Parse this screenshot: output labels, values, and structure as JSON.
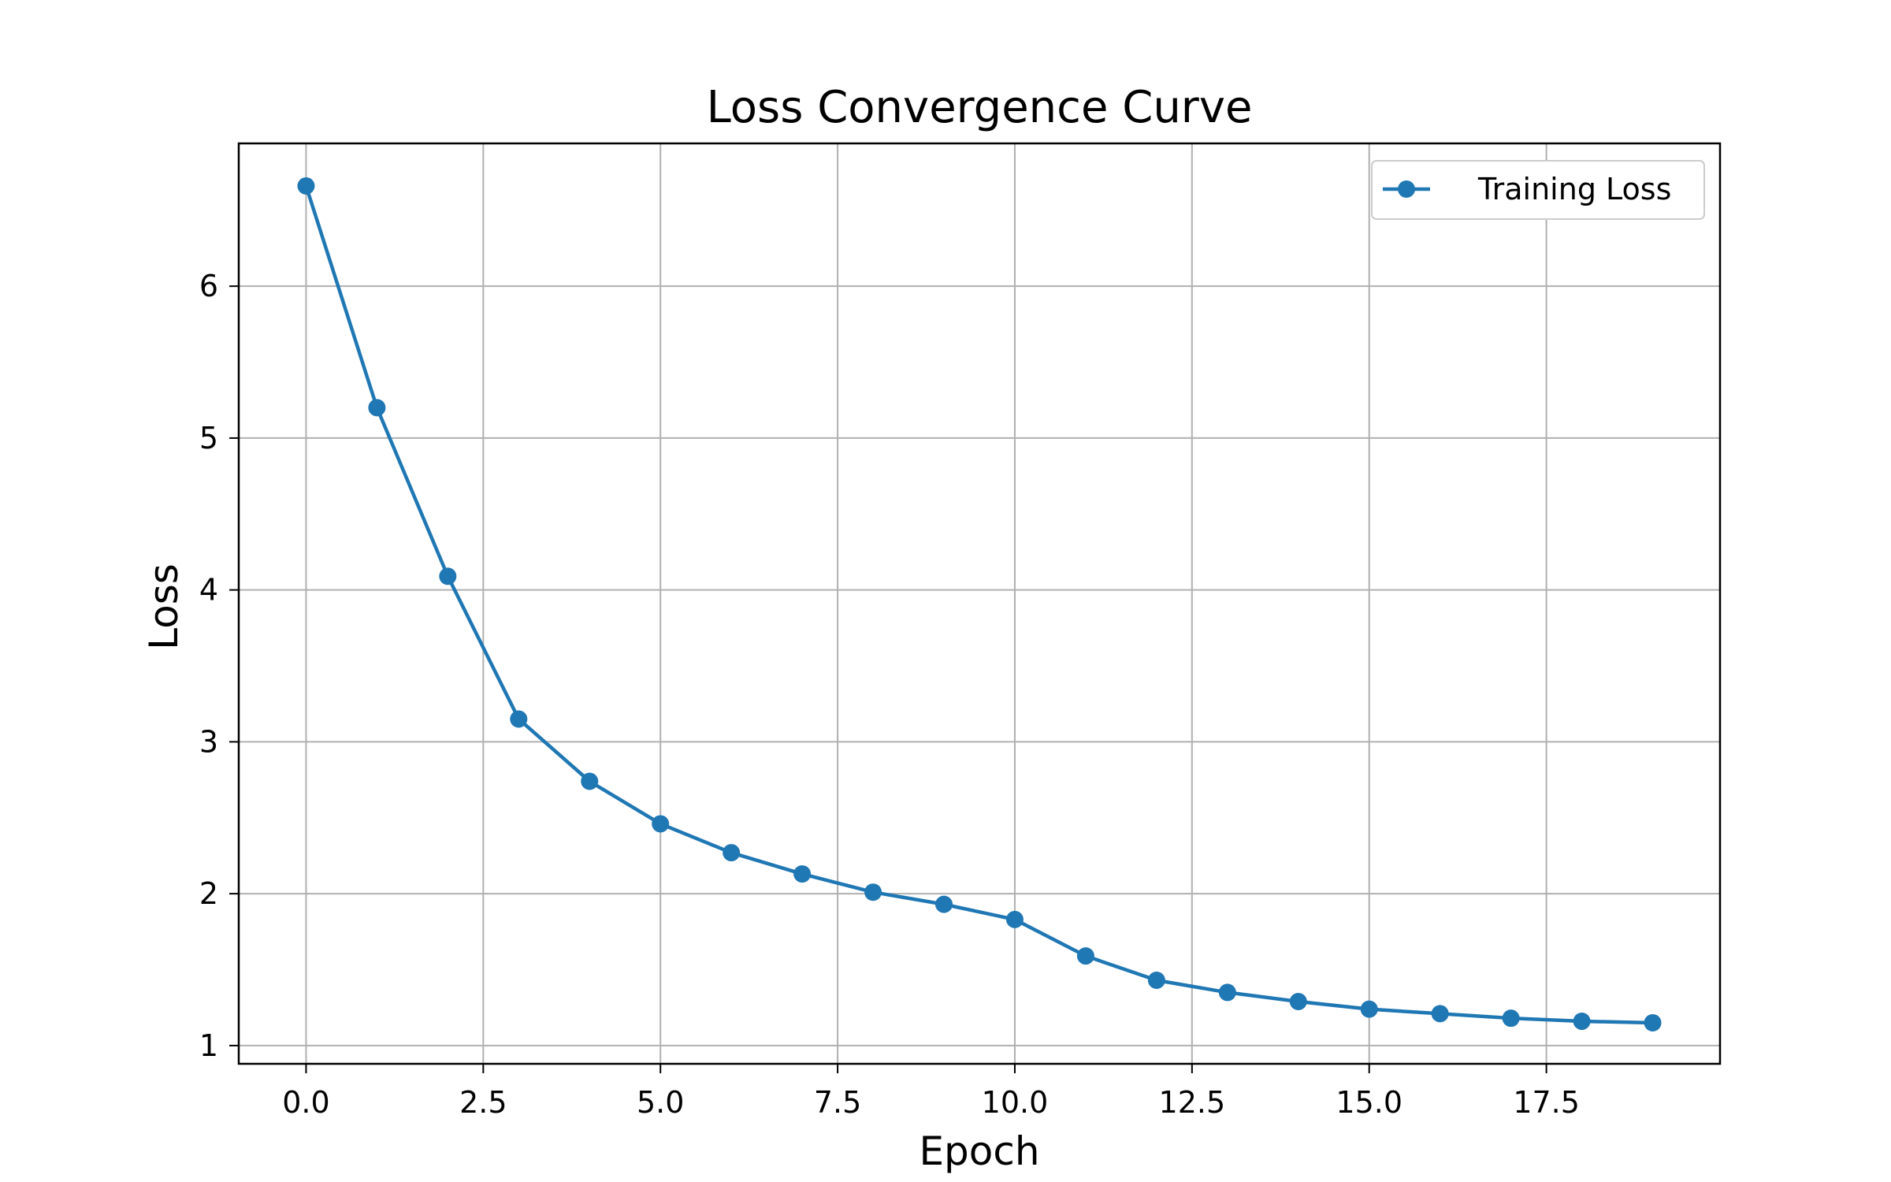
{
  "chart_data": {
    "type": "line",
    "title": "Loss Convergence Curve",
    "xlabel": "Epoch",
    "ylabel": "Loss",
    "xlim": [
      -0.95,
      19.95
    ],
    "ylim": [
      0.88,
      6.94
    ],
    "xticks": [
      0,
      2.5,
      5,
      7.5,
      10,
      12.5,
      15,
      17.5
    ],
    "xtick_labels": [
      "0.0",
      "2.5",
      "5.0",
      "7.5",
      "10.0",
      "12.5",
      "15.0",
      "17.5"
    ],
    "yticks": [
      1,
      2,
      3,
      4,
      5,
      6
    ],
    "ytick_labels": [
      "1",
      "2",
      "3",
      "4",
      "5",
      "6"
    ],
    "grid": true,
    "legend_position": "top-right",
    "x": [
      0,
      1,
      2,
      3,
      4,
      5,
      6,
      7,
      8,
      9,
      10,
      11,
      12,
      13,
      14,
      15,
      16,
      17,
      18,
      19
    ],
    "series": [
      {
        "name": "Training Loss",
        "color": "#1f77b4",
        "marker": "circle",
        "values": [
          6.66,
          5.2,
          4.09,
          3.15,
          2.74,
          2.46,
          2.27,
          2.13,
          2.01,
          1.93,
          1.83,
          1.59,
          1.43,
          1.35,
          1.29,
          1.24,
          1.21,
          1.18,
          1.16,
          1.15
        ]
      }
    ]
  }
}
